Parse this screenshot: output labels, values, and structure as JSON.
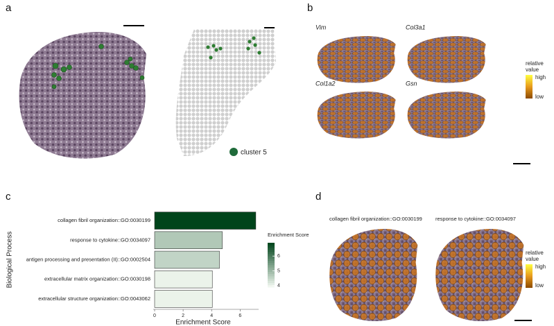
{
  "panel_labels": [
    "a",
    "b",
    "c",
    "d"
  ],
  "panel_a": {
    "legend": "cluster 5"
  },
  "panel_b": {
    "genes": [
      "Vim",
      "Col3a1",
      "Col1a2",
      "Gsn"
    ],
    "legend": {
      "title": [
        "relative",
        "value"
      ],
      "high": "high",
      "low": "low"
    }
  },
  "chart_data": {
    "type": "bar",
    "orientation": "horizontal",
    "y_label": "Biological Process",
    "x_label": "Enrichment Score",
    "categories": [
      "collagen fibril organization::GO:0030199",
      "response to cytokine::GO:0034097",
      "antigen processing and presentation (II)::GO:0002504",
      "extracellular matrix organization::GO:0030198",
      "extracellular structure organization::GO:0043062"
    ],
    "values": [
      7.1,
      4.75,
      4.55,
      4.05,
      4.05
    ],
    "xlim": [
      0,
      7.3
    ],
    "xticks": [
      0,
      2,
      4,
      6
    ],
    "legend": {
      "title": "Enrichment Score",
      "ticks": [
        4,
        5,
        6
      ],
      "range": [
        3.9,
        6.9
      ],
      "colors": [
        "#f7fcf5",
        "#00441b"
      ]
    }
  },
  "panel_d": {
    "titles": [
      "collagen fibril organization::GO:0030199",
      "response to cytokine::GO:0034097"
    ],
    "legend": {
      "title": [
        "relative",
        "value"
      ],
      "high": "high",
      "low": "low"
    }
  }
}
